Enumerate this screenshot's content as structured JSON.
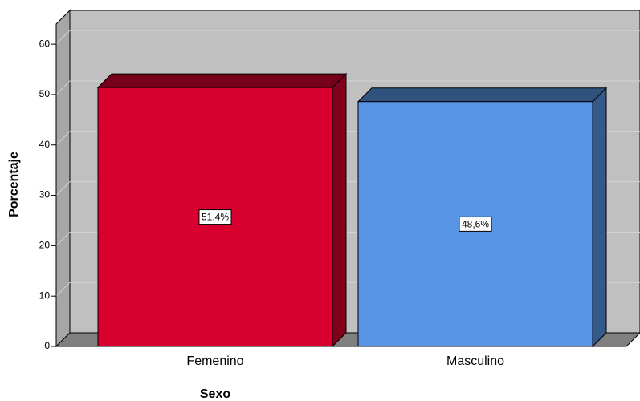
{
  "chart_data": {
    "type": "bar3d",
    "x_label": "Sexo",
    "y_label": "Porcentaje",
    "categories": [
      "Femenino",
      "Masculino"
    ],
    "values": [
      51.4,
      48.6
    ],
    "value_labels": [
      "51,4%",
      "48,6%"
    ],
    "colors": [
      "#d7002e",
      "#5896e5"
    ],
    "ylim": [
      0,
      64
    ],
    "yticks": [
      0,
      10,
      20,
      30,
      40,
      50,
      60
    ],
    "grid": true
  }
}
